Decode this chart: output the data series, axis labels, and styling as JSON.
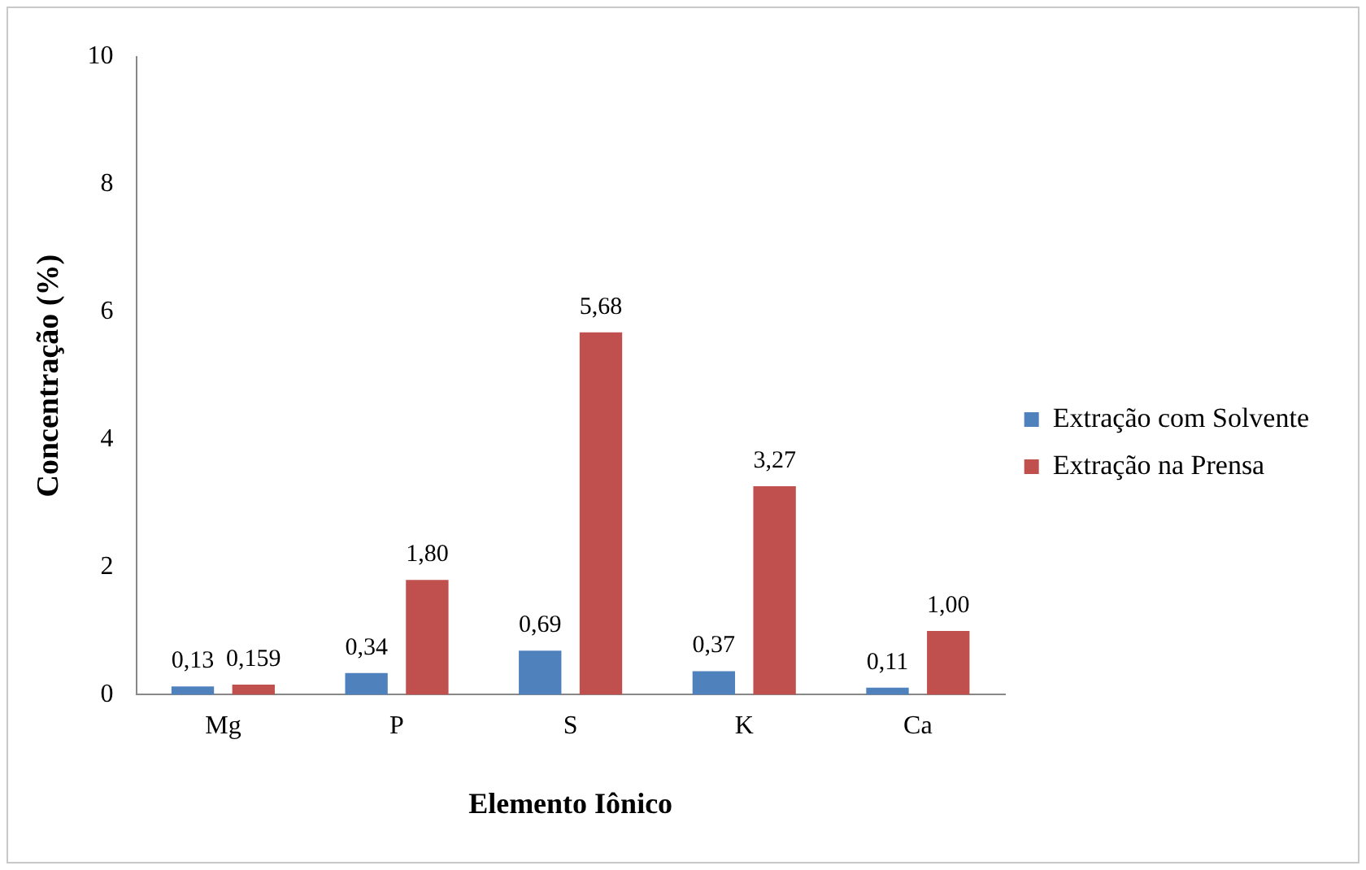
{
  "chart_data": {
    "type": "bar",
    "xlabel": "Elemento Iônico",
    "ylabel": "Concentração (%)",
    "categories": [
      "Mg",
      "P",
      "S",
      "K",
      "Ca"
    ],
    "series": [
      {
        "name": "Extração com Solvente",
        "color": "#4f81bd",
        "values": [
          0.13,
          0.34,
          0.69,
          0.37,
          0.11
        ],
        "value_labels": [
          "0,13",
          "0,34",
          "0,69",
          "0,37",
          "0,11"
        ]
      },
      {
        "name": "Extração na Prensa",
        "color": "#c0504d",
        "values": [
          0.159,
          1.8,
          5.68,
          3.27,
          1.0
        ],
        "value_labels": [
          "0,159",
          "1,80",
          "5,68",
          "3,27",
          "1,00"
        ]
      }
    ],
    "ylim": [
      0,
      10
    ],
    "yticks": [
      0,
      2,
      4,
      6,
      8,
      10
    ],
    "grid": false,
    "legend": "right"
  }
}
